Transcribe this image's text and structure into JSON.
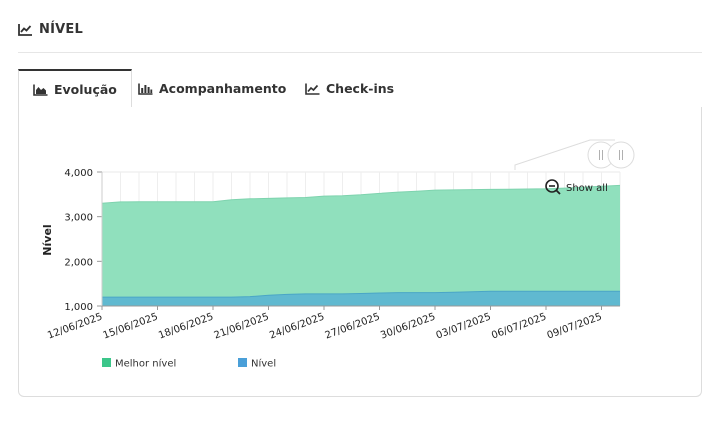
{
  "header": {
    "title": "NÍVEL",
    "icon": "line-chart-icon"
  },
  "tabs": [
    {
      "label": "Evolução",
      "icon": "area-chart-icon",
      "active": true
    },
    {
      "label": "Acompanhamento",
      "icon": "bar-chart-icon",
      "active": false
    },
    {
      "label": "Check-ins",
      "icon": "line-chart-icon",
      "active": false
    }
  ],
  "zoom": {
    "label": "Show all"
  },
  "chart_data": {
    "type": "area",
    "ylabel": "Nível",
    "xlabel": "",
    "ylim": [
      1000,
      4000
    ],
    "yticks": [
      1000,
      2000,
      3000,
      4000
    ],
    "ytick_labels": [
      "1,000",
      "2,000",
      "3,000",
      "4,000"
    ],
    "x_start": "12/06/2025",
    "x_end": "10/07/2025",
    "xtick_labels": [
      "12/06/2025",
      "15/06/2025",
      "18/06/2025",
      "21/06/2025",
      "24/06/2025",
      "27/06/2025",
      "30/06/2025",
      "03/07/2025",
      "06/07/2025",
      "09/07/2025"
    ],
    "x": [
      "12/06/2025",
      "13/06/2025",
      "14/06/2025",
      "15/06/2025",
      "16/06/2025",
      "17/06/2025",
      "18/06/2025",
      "19/06/2025",
      "20/06/2025",
      "21/06/2025",
      "22/06/2025",
      "23/06/2025",
      "24/06/2025",
      "25/06/2025",
      "26/06/2025",
      "27/06/2025",
      "28/06/2025",
      "29/06/2025",
      "30/06/2025",
      "01/07/2025",
      "02/07/2025",
      "03/07/2025",
      "04/07/2025",
      "05/07/2025",
      "06/07/2025",
      "07/07/2025",
      "08/07/2025",
      "09/07/2025",
      "10/07/2025"
    ],
    "series": [
      {
        "name": "Melhor nível",
        "color": "#90e0bd",
        "legend_color": "#3cc68a",
        "values": [
          3300,
          3330,
          3335,
          3335,
          3335,
          3335,
          3335,
          3380,
          3400,
          3410,
          3420,
          3430,
          3460,
          3470,
          3490,
          3520,
          3550,
          3570,
          3595,
          3600,
          3605,
          3610,
          3615,
          3620,
          3625,
          3640,
          3660,
          3680,
          3700
        ]
      },
      {
        "name": "Nível",
        "color": "#5eb6d1",
        "legend_color": "#4a9fd8",
        "values": [
          1200,
          1200,
          1200,
          1200,
          1200,
          1200,
          1200,
          1200,
          1210,
          1240,
          1260,
          1270,
          1270,
          1270,
          1280,
          1290,
          1300,
          1300,
          1300,
          1310,
          1320,
          1330,
          1330,
          1330,
          1330,
          1330,
          1330,
          1330,
          1330
        ]
      }
    ],
    "grid": true,
    "legend_position": "bottom-left"
  }
}
